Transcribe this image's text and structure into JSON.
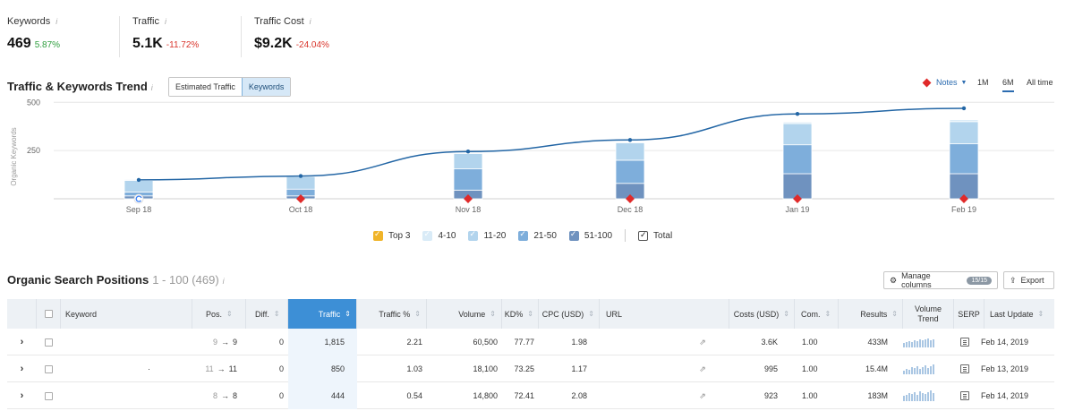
{
  "kpis": [
    {
      "label": "Keywords",
      "info": "i",
      "value": "469",
      "delta": "5.87%",
      "trend": "up"
    },
    {
      "label": "Traffic",
      "info": "i",
      "value": "5.1K",
      "delta": "-11.72%",
      "trend": "down"
    },
    {
      "label": "Traffic Cost",
      "info": "i",
      "value": "$9.2K",
      "delta": "-24.04%",
      "trend": "down"
    }
  ],
  "trend": {
    "title": "Traffic & Keywords Trend",
    "info": "i",
    "toggle": [
      "Estimated Traffic",
      "Keywords"
    ],
    "active_toggle": "Keywords",
    "notes_label": "Notes",
    "periods": [
      "1M",
      "6M",
      "All time"
    ],
    "active_period": "6M"
  },
  "chart_data": {
    "type": "bar",
    "ylabel": "Organic Keywords",
    "yticks": [
      500,
      250
    ],
    "ylim": [
      0,
      520
    ],
    "categories": [
      "Sep 18",
      "Oct 18",
      "Nov 18",
      "Dec 18",
      "Jan 19",
      "Feb 19"
    ],
    "series": [
      {
        "name": "Top 3",
        "values": [
          0,
          0,
          0,
          0,
          0,
          0
        ]
      },
      {
        "name": "4-10",
        "values": [
          5,
          5,
          5,
          5,
          8,
          10
        ]
      },
      {
        "name": "11-20",
        "values": [
          60,
          65,
          80,
          90,
          110,
          115
        ]
      },
      {
        "name": "21-50",
        "values": [
          20,
          35,
          110,
          120,
          150,
          155
        ]
      },
      {
        "name": "51-100",
        "values": [
          15,
          15,
          45,
          80,
          130,
          130
        ]
      },
      {
        "name": "Total",
        "values": [
          98,
          118,
          245,
          305,
          440,
          469
        ]
      }
    ],
    "series_colors": [
      "#f0b429",
      "#d9ebf7",
      "#b2d4ed",
      "#7eaedb",
      "#6f92bf",
      "#2366a5"
    ],
    "notes_markers": [
      "Oct 18",
      "Nov 18",
      "Dec 18",
      "Jan 19",
      "Feb 19"
    ],
    "google_marker": "Sep 18",
    "grid": true,
    "legend": "bottom"
  },
  "legend": [
    "Top 3",
    "4-10",
    "11-20",
    "21-50",
    "51-100",
    "Total"
  ],
  "organic": {
    "title": "Organic Search Positions",
    "range": "1 - 100 (469)",
    "info": "i",
    "manage_label": "Manage columns",
    "manage_badge": "15/15",
    "export_label": "Export"
  },
  "table": {
    "headers": {
      "keyword": "Keyword",
      "pos": "Pos.",
      "diff": "Diff.",
      "traffic": "Traffic",
      "traffic_pct": "Traffic %",
      "volume": "Volume",
      "kd": "KD%",
      "cpc": "CPC (USD)",
      "url": "URL",
      "costs": "Costs (USD)",
      "com": "Com.",
      "results": "Results",
      "vol_trend_1": "Volume",
      "vol_trend_2": "Trend",
      "serp": "SERP",
      "last_update": "Last Update"
    },
    "rows": [
      {
        "keyword": "",
        "prev_pos": "9",
        "arrow": "→",
        "pos": "9",
        "diff": "0",
        "traffic": "1,815",
        "traffic_pct": "2.21",
        "volume": "60,500",
        "kd": "77.77",
        "cpc": "1.98",
        "costs": "3.6K",
        "com": "1.00",
        "results": "433M",
        "last_update": "Feb 14, 2019",
        "trend": [
          5,
          6,
          7,
          6,
          8,
          7,
          9,
          8,
          9,
          10,
          8,
          9
        ]
      },
      {
        "keyword": "·",
        "prev_pos": "11",
        "arrow": "→",
        "pos": "11",
        "diff": "0",
        "traffic": "850",
        "traffic_pct": "1.03",
        "volume": "18,100",
        "kd": "73.25",
        "cpc": "1.17",
        "costs": "995",
        "com": "1.00",
        "results": "15.4M",
        "last_update": "Feb 13, 2019",
        "trend": [
          4,
          6,
          5,
          8,
          7,
          9,
          6,
          8,
          10,
          7,
          9,
          11
        ]
      },
      {
        "keyword": "",
        "prev_pos": "8",
        "arrow": "→",
        "pos": "8",
        "diff": "0",
        "traffic": "444",
        "traffic_pct": "0.54",
        "volume": "14,800",
        "kd": "72.41",
        "cpc": "2.08",
        "costs": "923",
        "com": "1.00",
        "results": "183M",
        "last_update": "Feb 14, 2019",
        "trend": [
          6,
          7,
          9,
          8,
          10,
          7,
          11,
          9,
          8,
          10,
          12,
          9
        ]
      }
    ]
  }
}
